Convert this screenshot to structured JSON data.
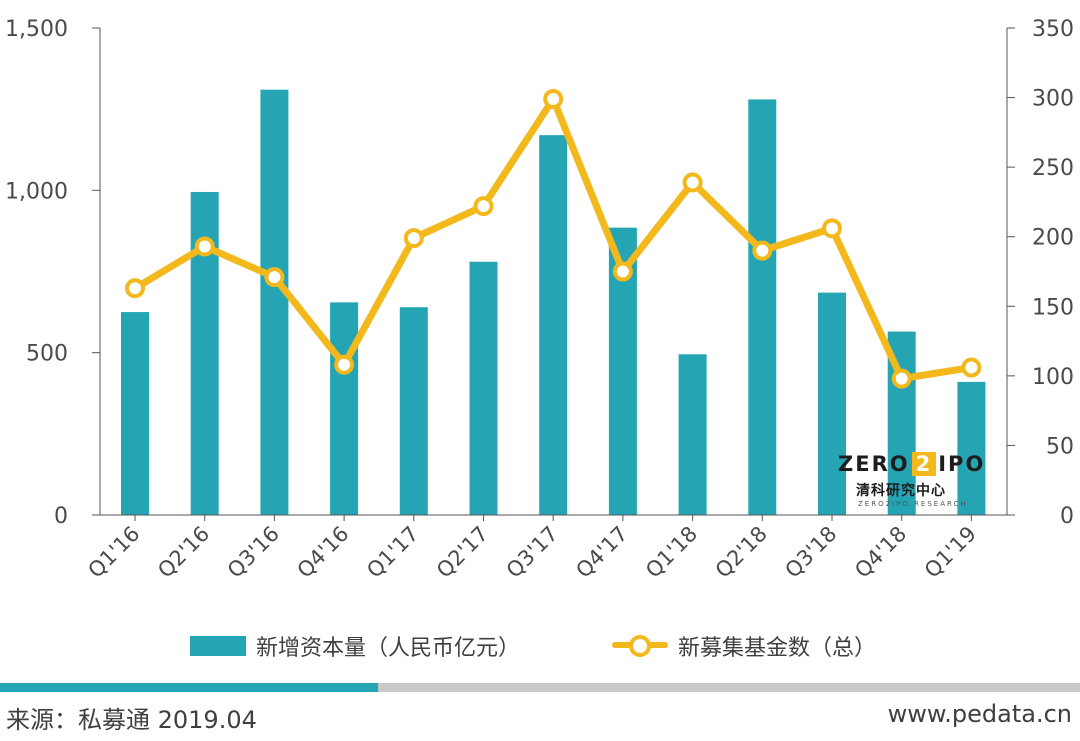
{
  "chart_data": {
    "type": "bar+line",
    "categories": [
      "Q1'16",
      "Q2'16",
      "Q3'16",
      "Q4'16",
      "Q1'17",
      "Q2'17",
      "Q3'17",
      "Q4'17",
      "Q1'18",
      "Q2'18",
      "Q3'18",
      "Q4'18",
      "Q1'19"
    ],
    "series": [
      {
        "name": "新增资本量（人民币亿元）",
        "type": "bar",
        "axis": "left",
        "color": "#25a5b4",
        "values": [
          625,
          995,
          1310,
          655,
          640,
          780,
          1170,
          885,
          495,
          1280,
          685,
          565,
          410
        ]
      },
      {
        "name": "新募集基金数（总）",
        "type": "line",
        "axis": "right",
        "color": "#f3b81b",
        "values": [
          163,
          193,
          171,
          108,
          199,
          222,
          299,
          175,
          239,
          190,
          206,
          98,
          106
        ]
      }
    ],
    "y_left": {
      "ticks": [
        "0",
        "500",
        "1,000",
        "1,500"
      ],
      "tick_values": [
        0,
        500,
        1000,
        1500
      ],
      "ylim": [
        0,
        1500
      ]
    },
    "y_right": {
      "ticks": [
        "0",
        "50",
        "100",
        "150",
        "200",
        "250",
        "300",
        "350"
      ],
      "tick_values": [
        0,
        50,
        100,
        150,
        200,
        250,
        300,
        350
      ],
      "ylim": [
        0,
        350
      ]
    },
    "legend_position": "bottom",
    "grid": false
  },
  "logo": {
    "main_left": "ZERO",
    "main_box": "2",
    "main_right": "IPO",
    "cn": "清科研究中心",
    "sub": "ZERO2IPO RESEARCH"
  },
  "footer": {
    "source": "来源：私募通 2019.04",
    "site": "www.pedata.cn"
  },
  "colors": {
    "bar": "#25a5b4",
    "line": "#f3b81b",
    "divider_accent": "#25a5b4",
    "divider_rest": "#c9c9c9",
    "axis": "#555555"
  }
}
